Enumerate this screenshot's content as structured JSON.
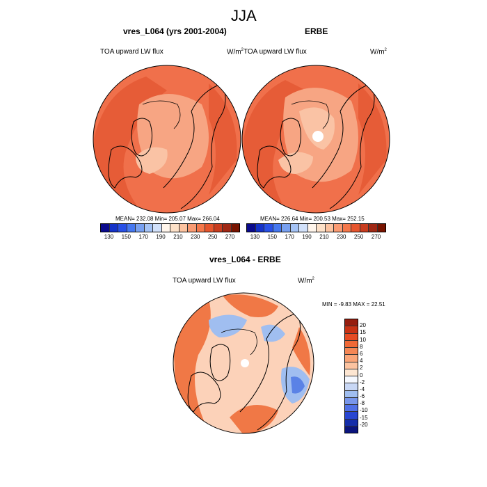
{
  "figure": {
    "title": "JJA"
  },
  "panels": [
    {
      "title": "vres_L064 (yrs 2001-2004)",
      "left_label": "TOA upward LW flux",
      "units": "W/m",
      "units_sup": "2",
      "stats": "MEAN= 232.08  Min= 205.07  Max= 266.04"
    },
    {
      "title": "ERBE",
      "left_label": "TOA upward LW flux",
      "units": "W/m",
      "units_sup": "2",
      "stats": "MEAN= 226.64  Min= 200.53  Max= 252.15"
    },
    {
      "title": "vres_L064 - ERBE",
      "left_label": "TOA upward LW flux",
      "units": "W/m",
      "units_sup": "2",
      "stats": "MIN =  -9.83 MAX =  22.51"
    }
  ],
  "colorbar_abs": {
    "ticks": [
      "130",
      "150",
      "170",
      "190",
      "210",
      "230",
      "250",
      "270"
    ],
    "colors": [
      "#0a0a8c",
      "#1432c8",
      "#2850e6",
      "#4678f0",
      "#78a0f0",
      "#a5c3f5",
      "#d2e1fa",
      "#fff5eb",
      "#fde1c8",
      "#fcc3a0",
      "#fa9b73",
      "#f5784b",
      "#e6552d",
      "#c83c1e",
      "#a02814",
      "#781400"
    ]
  },
  "colorbar_diff": {
    "ticks": [
      "20",
      "15",
      "10",
      "8",
      "6",
      "4",
      "2",
      "0",
      "-2",
      "-4",
      "-6",
      "-8",
      "-10",
      "-15",
      "-20"
    ],
    "colors": [
      "#961e0f",
      "#c83214",
      "#e64b23",
      "#f06937",
      "#f58755",
      "#faa578",
      "#fcc3a0",
      "#fde6d2",
      "#f5f8ff",
      "#c8d7f5",
      "#a0bef0",
      "#7896eb",
      "#5070e6",
      "#2846d2",
      "#142daa",
      "#0a147d"
    ]
  },
  "map_colors": {
    "base_abs": "#f0704b",
    "warm_abs": "#e65c37",
    "light_abs": "#f7a583",
    "lighter_abs": "#fac3a5",
    "white_spot": "#ffffff",
    "base_diff": "#fcd2b9",
    "hot_diff": "#f07846",
    "cool_diff": "#a0bef0",
    "coolest_diff": "#5a82e6",
    "coast": "#000000"
  }
}
